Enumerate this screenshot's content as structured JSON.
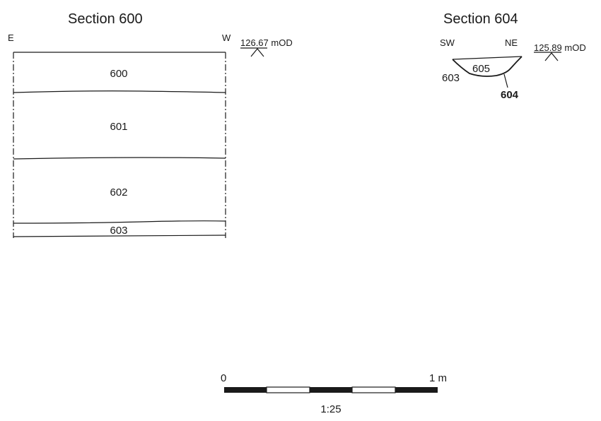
{
  "section_600": {
    "title": "Section 600",
    "orientation_left": "E",
    "orientation_right": "W",
    "datum": "126.67 mOD",
    "contexts": [
      "600",
      "601",
      "602",
      "603"
    ]
  },
  "section_604": {
    "title": "Section 604",
    "orientation_left": "SW",
    "orientation_right": "NE",
    "datum": "125.89 mOD",
    "fill_label": "605",
    "layer_label": "603",
    "cut_label": "604"
  },
  "scale_bar": {
    "start_label": "0",
    "end_label": "1 m",
    "ratio": "1:25"
  }
}
